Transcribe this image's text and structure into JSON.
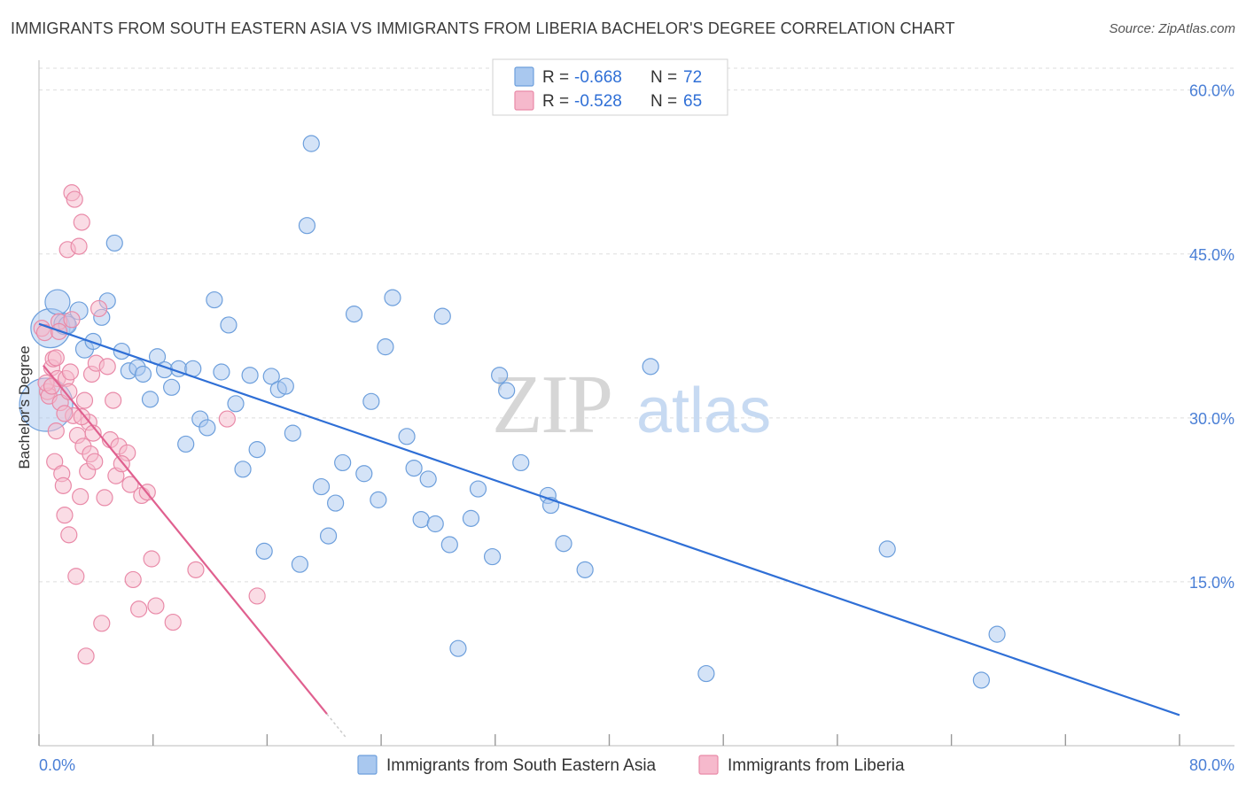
{
  "title": "IMMIGRANTS FROM SOUTH EASTERN ASIA VS IMMIGRANTS FROM LIBERIA BACHELOR'S DEGREE CORRELATION CHART",
  "source": "Source: ZipAtlas.com",
  "watermark": {
    "zip": "ZIP",
    "atlas": "atlas"
  },
  "colors": {
    "blue_fill": "#a9c8ef",
    "blue_stroke": "#6d9fdc",
    "blue_line": "#2f6fd6",
    "pink_fill": "#f6b9cc",
    "pink_stroke": "#e98aa8",
    "pink_line": "#e0608f",
    "grid": "#dddddd",
    "tick_text": "#4a7fd6"
  },
  "legend": {
    "rows": [
      {
        "r_label": "R =",
        "r_value": "-0.668",
        "n_label": "N =",
        "n_value": "72"
      },
      {
        "r_label": "R =",
        "r_value": "-0.528",
        "n_label": "N =",
        "n_value": "65"
      }
    ]
  },
  "chart_data": {
    "type": "scatter",
    "xlabel": "",
    "ylabel": "Bachelor's Degree",
    "xlim": [
      0,
      80
    ],
    "ylim": [
      0,
      62
    ],
    "x_tick_labels": [
      "0.0%",
      "80.0%"
    ],
    "y_ticks": [
      15,
      30,
      45,
      60
    ],
    "y_tick_labels": [
      "15.0%",
      "30.0%",
      "45.0%",
      "60.0%"
    ],
    "grid": true,
    "legend_position": "top-center",
    "series": [
      {
        "name": "Immigrants from South Eastern Asia",
        "color": "#6d9fdc",
        "trend": {
          "x": [
            0,
            80
          ],
          "y": [
            38.6,
            2.8
          ]
        },
        "points": [
          [
            0.5,
            31.2,
            30
          ],
          [
            0.8,
            38.2,
            22
          ],
          [
            1.3,
            40.6,
            14
          ],
          [
            1.8,
            38.6,
            12
          ],
          [
            2.0,
            38.5,
            10
          ],
          [
            2.8,
            39.8,
            10
          ],
          [
            3.2,
            36.3,
            10
          ],
          [
            3.8,
            37.0,
            9
          ],
          [
            4.4,
            39.2,
            9
          ],
          [
            4.8,
            40.7,
            9
          ],
          [
            5.3,
            46.0,
            9
          ],
          [
            5.8,
            36.1,
            9
          ],
          [
            6.3,
            34.3,
            9
          ],
          [
            6.9,
            34.6,
            9
          ],
          [
            7.3,
            34.0,
            9
          ],
          [
            7.8,
            31.7,
            9
          ],
          [
            8.3,
            35.6,
            9
          ],
          [
            8.8,
            34.4,
            9
          ],
          [
            9.3,
            32.8,
            9
          ],
          [
            9.8,
            34.5,
            9
          ],
          [
            10.3,
            27.6,
            9
          ],
          [
            10.8,
            34.5,
            9
          ],
          [
            11.3,
            29.9,
            9
          ],
          [
            11.8,
            29.1,
            9
          ],
          [
            12.3,
            40.8,
            9
          ],
          [
            12.8,
            34.2,
            9
          ],
          [
            13.3,
            38.5,
            9
          ],
          [
            13.8,
            31.3,
            9
          ],
          [
            14.3,
            25.3,
            9
          ],
          [
            14.8,
            33.9,
            9
          ],
          [
            15.3,
            27.1,
            9
          ],
          [
            15.8,
            17.8,
            9
          ],
          [
            16.3,
            33.8,
            9
          ],
          [
            16.8,
            32.6,
            9
          ],
          [
            17.3,
            32.9,
            9
          ],
          [
            17.8,
            28.6,
            9
          ],
          [
            18.3,
            16.6,
            9
          ],
          [
            18.8,
            47.6,
            9
          ],
          [
            19.1,
            55.1,
            9
          ],
          [
            19.8,
            23.7,
            9
          ],
          [
            20.3,
            19.2,
            9
          ],
          [
            20.8,
            22.2,
            9
          ],
          [
            21.3,
            25.9,
            9
          ],
          [
            22.1,
            39.5,
            9
          ],
          [
            22.8,
            24.9,
            9
          ],
          [
            23.3,
            31.5,
            9
          ],
          [
            23.8,
            22.5,
            9
          ],
          [
            24.3,
            36.5,
            9
          ],
          [
            24.8,
            41.0,
            9
          ],
          [
            25.8,
            28.3,
            9
          ],
          [
            26.3,
            25.4,
            9
          ],
          [
            26.8,
            20.7,
            9
          ],
          [
            27.3,
            24.4,
            9
          ],
          [
            27.8,
            20.3,
            9
          ],
          [
            28.3,
            39.3,
            9
          ],
          [
            28.8,
            18.4,
            9
          ],
          [
            29.4,
            8.9,
            9
          ],
          [
            30.3,
            20.8,
            9
          ],
          [
            30.8,
            23.5,
            9
          ],
          [
            31.8,
            17.3,
            9
          ],
          [
            32.3,
            33.9,
            9
          ],
          [
            32.8,
            32.5,
            9
          ],
          [
            33.8,
            25.9,
            9
          ],
          [
            35.7,
            22.9,
            9
          ],
          [
            35.9,
            22.0,
            9
          ],
          [
            36.8,
            18.5,
            9
          ],
          [
            38.3,
            16.1,
            9
          ],
          [
            42.9,
            34.7,
            9
          ],
          [
            46.8,
            6.6,
            9
          ],
          [
            59.5,
            18.0,
            9
          ],
          [
            67.2,
            10.2,
            9
          ],
          [
            66.1,
            6.0,
            9
          ]
        ]
      },
      {
        "name": "Immigrants from Liberia",
        "color": "#e98aa8",
        "trend": {
          "x": [
            0.3,
            20.2
          ],
          "y": [
            34.8,
            2.9
          ]
        },
        "trend_dashed": {
          "x": [
            20.2,
            21.5
          ],
          "y": [
            2.9,
            0.8
          ]
        },
        "points": [
          [
            0.2,
            38.2,
            9
          ],
          [
            0.4,
            37.8,
            9
          ],
          [
            0.6,
            32.4,
            9
          ],
          [
            0.7,
            32.0,
            9
          ],
          [
            0.9,
            34.6,
            9
          ],
          [
            1.0,
            35.4,
            9
          ],
          [
            1.1,
            26.0,
            9
          ],
          [
            1.2,
            35.5,
            9
          ],
          [
            1.3,
            33.6,
            9
          ],
          [
            1.4,
            38.8,
            9
          ],
          [
            1.5,
            31.4,
            9
          ],
          [
            1.6,
            24.9,
            9
          ],
          [
            1.7,
            23.8,
            9
          ],
          [
            1.8,
            21.1,
            9
          ],
          [
            1.9,
            33.6,
            9
          ],
          [
            2.0,
            45.4,
            9
          ],
          [
            2.1,
            19.3,
            9
          ],
          [
            2.2,
            34.2,
            9
          ],
          [
            2.3,
            50.6,
            9
          ],
          [
            2.4,
            30.2,
            9
          ],
          [
            2.5,
            50.0,
            9
          ],
          [
            2.6,
            15.5,
            9
          ],
          [
            2.7,
            28.4,
            9
          ],
          [
            2.8,
            45.7,
            9
          ],
          [
            2.9,
            22.8,
            9
          ],
          [
            3.0,
            47.9,
            9
          ],
          [
            3.1,
            27.4,
            9
          ],
          [
            3.2,
            31.6,
            9
          ],
          [
            3.3,
            8.2,
            9
          ],
          [
            3.4,
            25.1,
            9
          ],
          [
            3.5,
            29.6,
            9
          ],
          [
            3.6,
            26.7,
            9
          ],
          [
            3.7,
            34.0,
            9
          ],
          [
            3.8,
            28.6,
            9
          ],
          [
            3.9,
            26.0,
            9
          ],
          [
            4.0,
            35.0,
            9
          ],
          [
            4.2,
            40.0,
            9
          ],
          [
            4.4,
            11.2,
            9
          ],
          [
            4.6,
            22.7,
            9
          ],
          [
            4.8,
            34.7,
            9
          ],
          [
            5.0,
            28.0,
            9
          ],
          [
            5.2,
            31.6,
            9
          ],
          [
            5.4,
            24.7,
            9
          ],
          [
            5.6,
            27.4,
            9
          ],
          [
            6.2,
            26.8,
            9
          ],
          [
            6.6,
            15.2,
            9
          ],
          [
            7.0,
            12.5,
            9
          ],
          [
            7.2,
            22.9,
            9
          ],
          [
            7.6,
            23.2,
            9
          ],
          [
            7.9,
            17.1,
            9
          ],
          [
            8.2,
            12.8,
            9
          ],
          [
            9.4,
            11.3,
            9
          ],
          [
            11.0,
            16.1,
            9
          ],
          [
            13.2,
            29.9,
            9
          ],
          [
            15.3,
            13.7,
            9
          ],
          [
            1.4,
            37.9,
            9
          ],
          [
            2.3,
            39.0,
            9
          ],
          [
            0.5,
            33.2,
            9
          ],
          [
            1.8,
            30.4,
            9
          ],
          [
            2.1,
            32.4,
            9
          ],
          [
            3.0,
            30.1,
            9
          ],
          [
            0.9,
            32.9,
            9
          ],
          [
            1.2,
            28.8,
            9
          ],
          [
            5.8,
            25.8,
            9
          ],
          [
            6.4,
            23.9,
            9
          ]
        ]
      }
    ]
  }
}
